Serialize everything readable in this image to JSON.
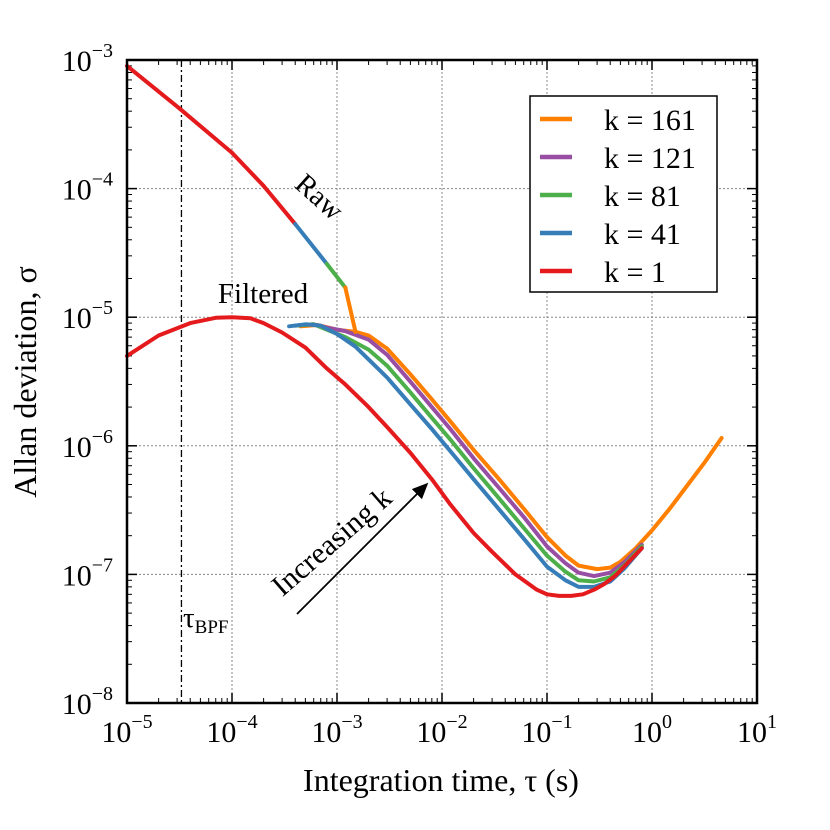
{
  "chart_data": {
    "type": "line",
    "xscale": "log",
    "yscale": "log",
    "xlim": [
      1e-05,
      10
    ],
    "ylim": [
      1e-08,
      0.001
    ],
    "grid": true,
    "legend_position": "top-right",
    "xlabel": "Integration time, τ (s)",
    "ylabel": "Allan deviation, σ",
    "x_ticks": [
      {
        "value": 1e-05,
        "base": "10",
        "exp": "−5"
      },
      {
        "value": 0.0001,
        "base": "10",
        "exp": "−4"
      },
      {
        "value": 0.001,
        "base": "10",
        "exp": "−3"
      },
      {
        "value": 0.01,
        "base": "10",
        "exp": "−2"
      },
      {
        "value": 0.1,
        "base": "10",
        "exp": "−1"
      },
      {
        "value": 1,
        "base": "10",
        "exp": "0"
      },
      {
        "value": 10,
        "base": "10",
        "exp": "1"
      }
    ],
    "y_ticks": [
      {
        "value": 1e-08,
        "base": "10",
        "exp": "−8"
      },
      {
        "value": 1e-07,
        "base": "10",
        "exp": "−7"
      },
      {
        "value": 1e-06,
        "base": "10",
        "exp": "−6"
      },
      {
        "value": 1e-05,
        "base": "10",
        "exp": "−5"
      },
      {
        "value": 0.0001,
        "base": "10",
        "exp": "−4"
      },
      {
        "value": 0.001,
        "base": "10",
        "exp": "−3"
      }
    ],
    "series": [
      {
        "name": "k = 161",
        "color": "#ff7f00",
        "raw_from": 0.0015,
        "x": [
          0.00045,
          0.00065,
          0.001,
          0.0015,
          0.002,
          0.003,
          0.005,
          0.008,
          0.012,
          0.02,
          0.035,
          0.06,
          0.1,
          0.15,
          0.2,
          0.3,
          0.4,
          0.5,
          0.7,
          1.0,
          1.5,
          2.2,
          3.2,
          4.6
        ],
        "y": [
          8.5e-06,
          8.7e-06,
          8e-06,
          7.7e-06,
          7.2e-06,
          5.7e-06,
          3.6e-06,
          2.3e-06,
          1.55e-06,
          9.3e-07,
          5.5e-07,
          3.25e-07,
          1.95e-07,
          1.4e-07,
          1.17e-07,
          1.1e-07,
          1.13e-07,
          1.25e-07,
          1.6e-07,
          2.2e-07,
          3.3e-07,
          5e-07,
          7.5e-07,
          1.15e-06
        ]
      },
      {
        "name": "k = 121",
        "color": "#984ea3",
        "raw_from": 0.0012,
        "x": [
          0.0004,
          0.0006,
          0.0008,
          0.0012,
          0.002,
          0.003,
          0.005,
          0.008,
          0.012,
          0.02,
          0.035,
          0.06,
          0.1,
          0.15,
          0.2,
          0.28,
          0.4,
          0.55,
          0.8
        ],
        "y": [
          8.6e-06,
          8.8e-06,
          8.3e-06,
          7.8e-06,
          6.7e-06,
          5.1e-06,
          3.15e-06,
          2e-06,
          1.35e-06,
          8e-07,
          4.7e-07,
          2.8e-07,
          1.65e-07,
          1.22e-07,
          1.03e-07,
          9.7e-08,
          1.03e-07,
          1.25e-07,
          1.7e-07
        ]
      },
      {
        "name": "k = 81",
        "color": "#4daf4a",
        "raw_from": 0.0008,
        "x": [
          0.0004,
          0.0006,
          0.0008,
          0.0012,
          0.002,
          0.003,
          0.005,
          0.008,
          0.012,
          0.02,
          0.035,
          0.06,
          0.1,
          0.15,
          0.2,
          0.28,
          0.4,
          0.55,
          0.8
        ],
        "y": [
          8.6e-06,
          8.8e-06,
          8e-06,
          7e-06,
          5.6e-06,
          4.2e-06,
          2.6e-06,
          1.65e-06,
          1.12e-06,
          6.7e-07,
          3.9e-07,
          2.3e-07,
          1.4e-07,
          1.05e-07,
          9e-08,
          8.8e-08,
          9.5e-08,
          1.18e-07,
          1.65e-07
        ]
      },
      {
        "name": "k = 41",
        "color": "#377eb8",
        "raw_from": 0.0004,
        "x": [
          0.00035,
          0.0005,
          0.0007,
          0.001,
          0.0015,
          0.002,
          0.003,
          0.005,
          0.008,
          0.012,
          0.02,
          0.035,
          0.06,
          0.1,
          0.15,
          0.2,
          0.28,
          0.4,
          0.55,
          0.8
        ],
        "y": [
          8.5e-06,
          8.8e-06,
          8.6e-06,
          7.4e-06,
          5.9e-06,
          4.7e-06,
          3.4e-06,
          2.1e-06,
          1.35e-06,
          9.1e-07,
          5.5e-07,
          3.2e-07,
          1.9e-07,
          1.15e-07,
          9e-08,
          8e-08,
          8e-08,
          8.8e-08,
          1.12e-07,
          1.6e-07
        ]
      },
      {
        "name": "k = 1",
        "color": "#e41a1c",
        "raw_from": 1e-05,
        "x": [
          1e-05,
          2e-05,
          4e-05,
          7e-05,
          0.0001,
          0.00015,
          0.0002,
          0.0003,
          0.0005,
          0.0008,
          0.0012,
          0.002,
          0.003,
          0.005,
          0.008,
          0.012,
          0.02,
          0.03,
          0.05,
          0.08,
          0.1,
          0.13,
          0.17,
          0.22,
          0.28,
          0.35,
          0.45,
          0.6,
          0.8
        ],
        "y": [
          5e-06,
          7.2e-06,
          9e-06,
          9.9e-06,
          1e-05,
          9.8e-06,
          9e-06,
          7.6e-06,
          5.8e-06,
          4e-06,
          3e-06,
          2e-06,
          1.4e-06,
          8.8e-07,
          5.5e-07,
          3.5e-07,
          2.1e-07,
          1.5e-07,
          1e-07,
          7.6e-08,
          7e-08,
          6.8e-08,
          6.8e-08,
          7e-08,
          7.6e-08,
          8.4e-08,
          9.8e-08,
          1.25e-07,
          1.6e-07
        ]
      }
    ],
    "raw_curve": {
      "x": [
        1e-05,
        3.16e-05,
        0.0001,
        0.0002,
        0.0004,
        0.0008,
        0.0012
      ],
      "y": [
        0.0009,
        0.00042,
        0.00019,
        0.000105,
        5.3e-05,
        2.6e-05,
        1.7e-05
      ]
    },
    "tau_bpf_x": 3.3e-05,
    "annotations": {
      "raw": "Raw",
      "filtered": "Filtered",
      "increasing_k": "Increasing k",
      "tau_main": "τ",
      "tau_sub": "BPF"
    }
  }
}
